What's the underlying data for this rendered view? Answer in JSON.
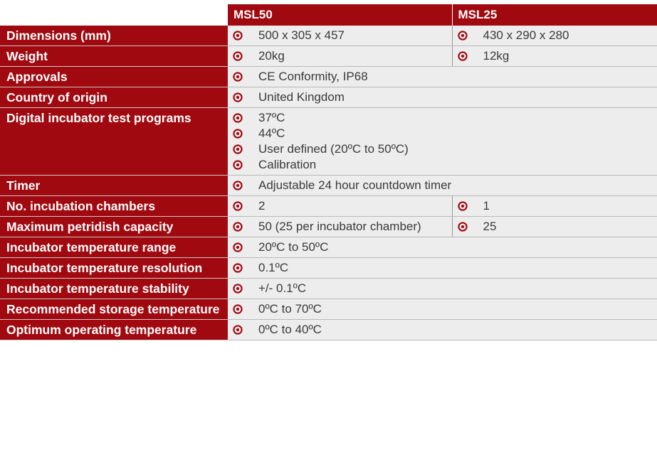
{
  "header": {
    "models": [
      "MSL50",
      "MSL25"
    ]
  },
  "rows": [
    {
      "label": "Dimensions (mm)",
      "a": [
        "500 x 305 x 457"
      ],
      "b": [
        "430 x 290 x 280"
      ]
    },
    {
      "label": "Weight",
      "a": [
        "20kg"
      ],
      "b": [
        "12kg"
      ]
    },
    {
      "label": "Approvals",
      "span": [
        "CE Conformity, IP68"
      ]
    },
    {
      "label": "Country of origin",
      "span": [
        "United Kingdom"
      ]
    },
    {
      "label": "Digital incubator test programs",
      "span": [
        "37ºC",
        "44ºC",
        "User defined (20ºC to 50ºC)",
        "Calibration"
      ]
    },
    {
      "label": "Timer",
      "span": [
        "Adjustable 24 hour countdown timer"
      ]
    },
    {
      "label": "No. incubation chambers",
      "a": [
        "2"
      ],
      "b": [
        "1"
      ]
    },
    {
      "label": "Maximum petridish capacity",
      "a": [
        "50 (25 per incubator chamber)"
      ],
      "b": [
        "25"
      ]
    },
    {
      "label": "Incubator temperature range",
      "span": [
        "20ºC to 50ºC"
      ]
    },
    {
      "label": "Incubator temperature resolution",
      "span": [
        "0.1ºC"
      ]
    },
    {
      "label": "Incubator temperature stability",
      "span": [
        "+/- 0.1ºC"
      ]
    },
    {
      "label": "Recommended storage temperature",
      "span": [
        "0ºC to 70ºC"
      ]
    },
    {
      "label": "Optimum operating temperature",
      "span": [
        "0ºC to 40ºC"
      ]
    }
  ],
  "colors": {
    "header_bg": "#a0090f",
    "label_bg": "#a0090f",
    "cell_bg": "#ededed",
    "bullet": "#a0090f"
  },
  "icons": {
    "bullet": "target-bullet-icon"
  }
}
